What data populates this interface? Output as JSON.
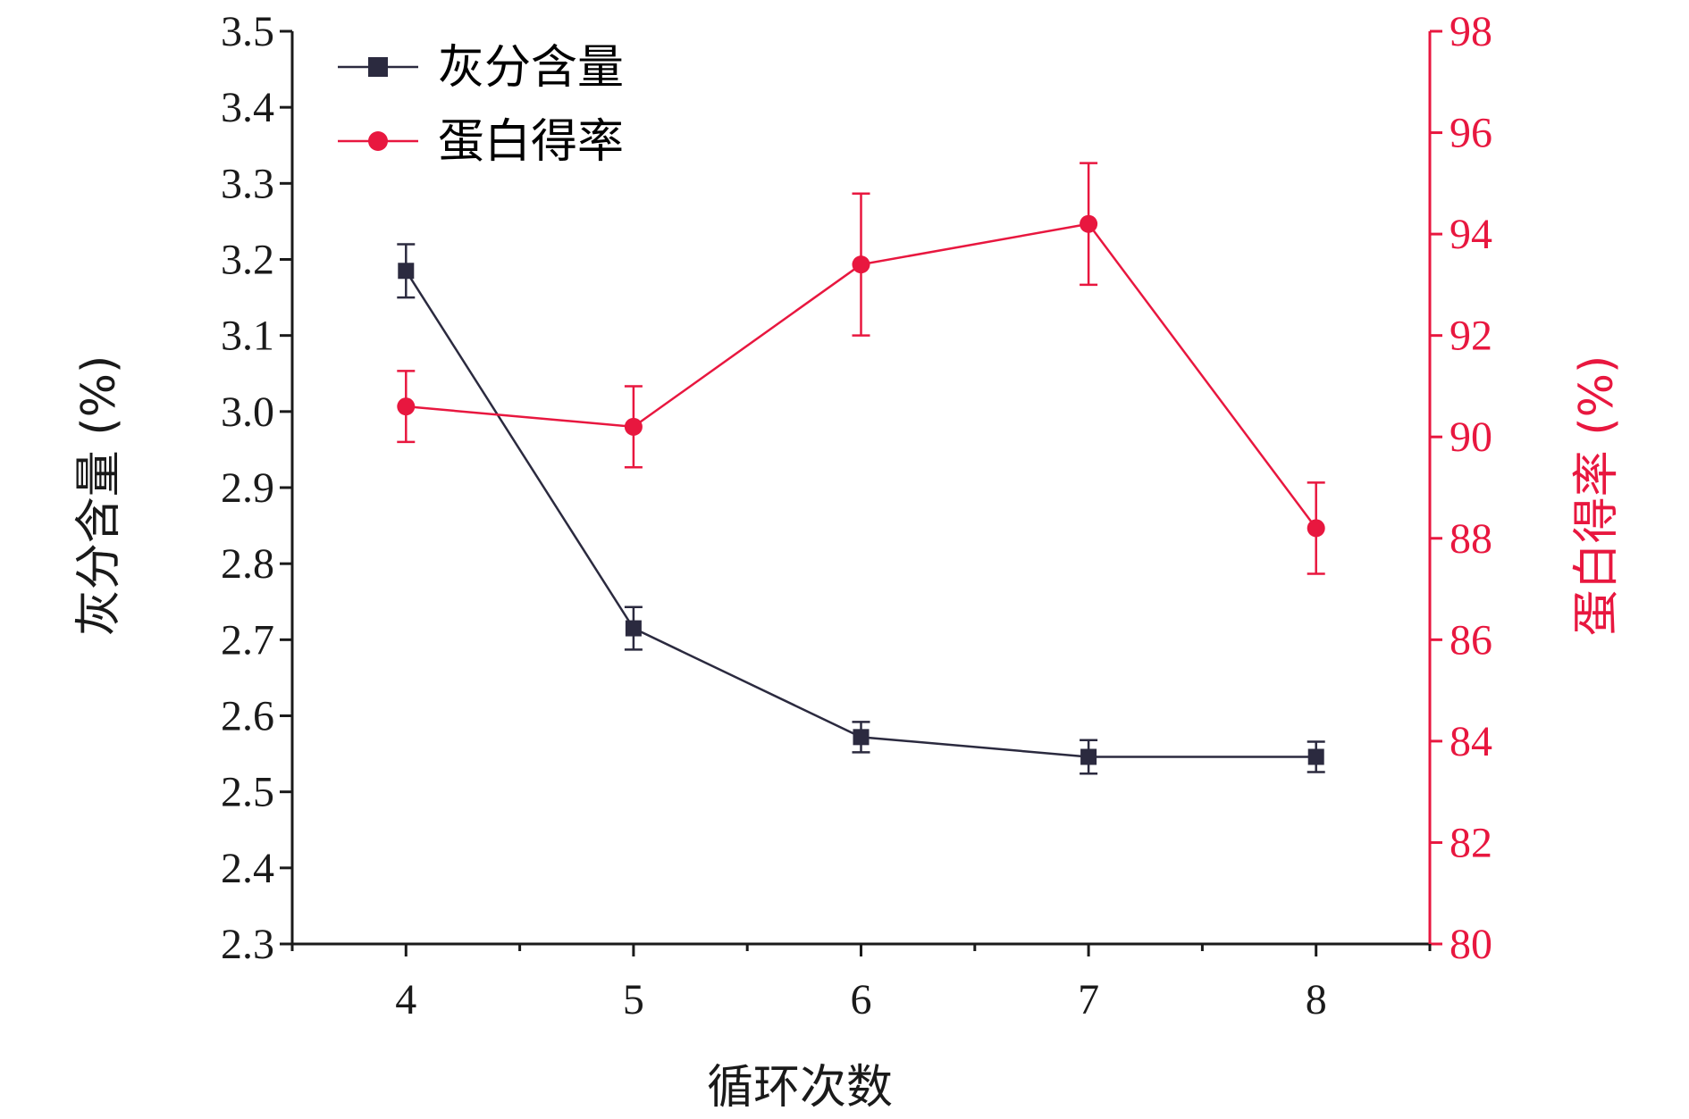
{
  "chart_data": {
    "type": "line",
    "title": "",
    "xlabel": "循环次数",
    "ylabel_left": "灰分含量 (%)",
    "ylabel_right": "蛋白得率 (%)",
    "x": [
      4,
      5,
      6,
      7,
      8
    ],
    "xlim": [
      3.5,
      8.5
    ],
    "ylim_left": [
      2.3,
      3.5
    ],
    "yticks_left": [
      "3.5",
      "3.4",
      "3.3",
      "3.2",
      "3.1",
      "3.0",
      "2.9",
      "2.8",
      "2.7",
      "2.6",
      "2.5",
      "2.4",
      "2.3"
    ],
    "ylim_right": [
      80,
      98
    ],
    "yticks_right": [
      "98",
      "96",
      "94",
      "92",
      "90",
      "88",
      "86",
      "84",
      "82",
      "80"
    ],
    "grid": false,
    "legend_position": "top-left",
    "series": [
      {
        "name": "灰分含量",
        "axis": "left",
        "marker": "square",
        "color": "#2b2a3f",
        "values": [
          3.185,
          2.715,
          2.572,
          2.546,
          2.546
        ],
        "errors": [
          0.035,
          0.028,
          0.02,
          0.022,
          0.02
        ]
      },
      {
        "name": "蛋白得率",
        "axis": "right",
        "marker": "circle",
        "color": "#e8173f",
        "values": [
          90.6,
          90.2,
          93.4,
          94.2,
          88.2
        ],
        "errors": [
          0.7,
          0.8,
          1.4,
          1.2,
          0.9
        ]
      }
    ]
  }
}
